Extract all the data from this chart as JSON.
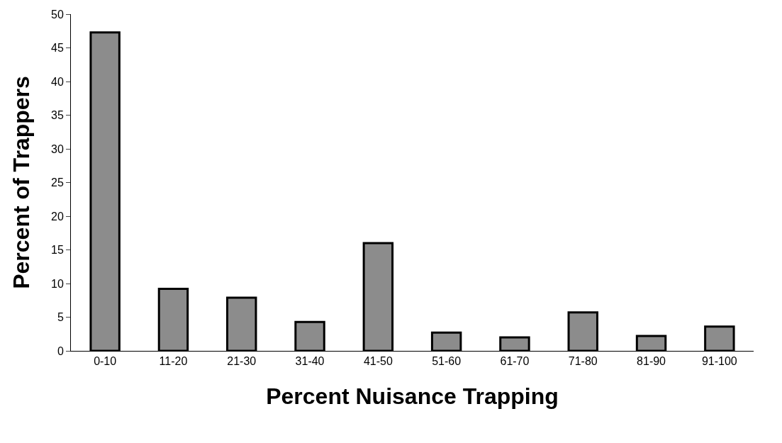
{
  "chart_data": {
    "type": "bar",
    "xlabel": "Percent Nuisance Trapping",
    "ylabel": "Percent of Trappers",
    "categories": [
      "0-10",
      "11-20",
      "21-30",
      "31-40",
      "41-50",
      "51-60",
      "61-70",
      "71-80",
      "81-90",
      "91-100"
    ],
    "values": [
      47.3,
      9.2,
      7.9,
      4.3,
      16.0,
      2.7,
      2.0,
      5.7,
      2.2,
      3.6
    ],
    "color": "#8c8c8c",
    "ylim": [
      0,
      50
    ],
    "yticks": [
      0,
      5,
      10,
      15,
      20,
      25,
      30,
      35,
      40,
      45,
      50
    ]
  }
}
